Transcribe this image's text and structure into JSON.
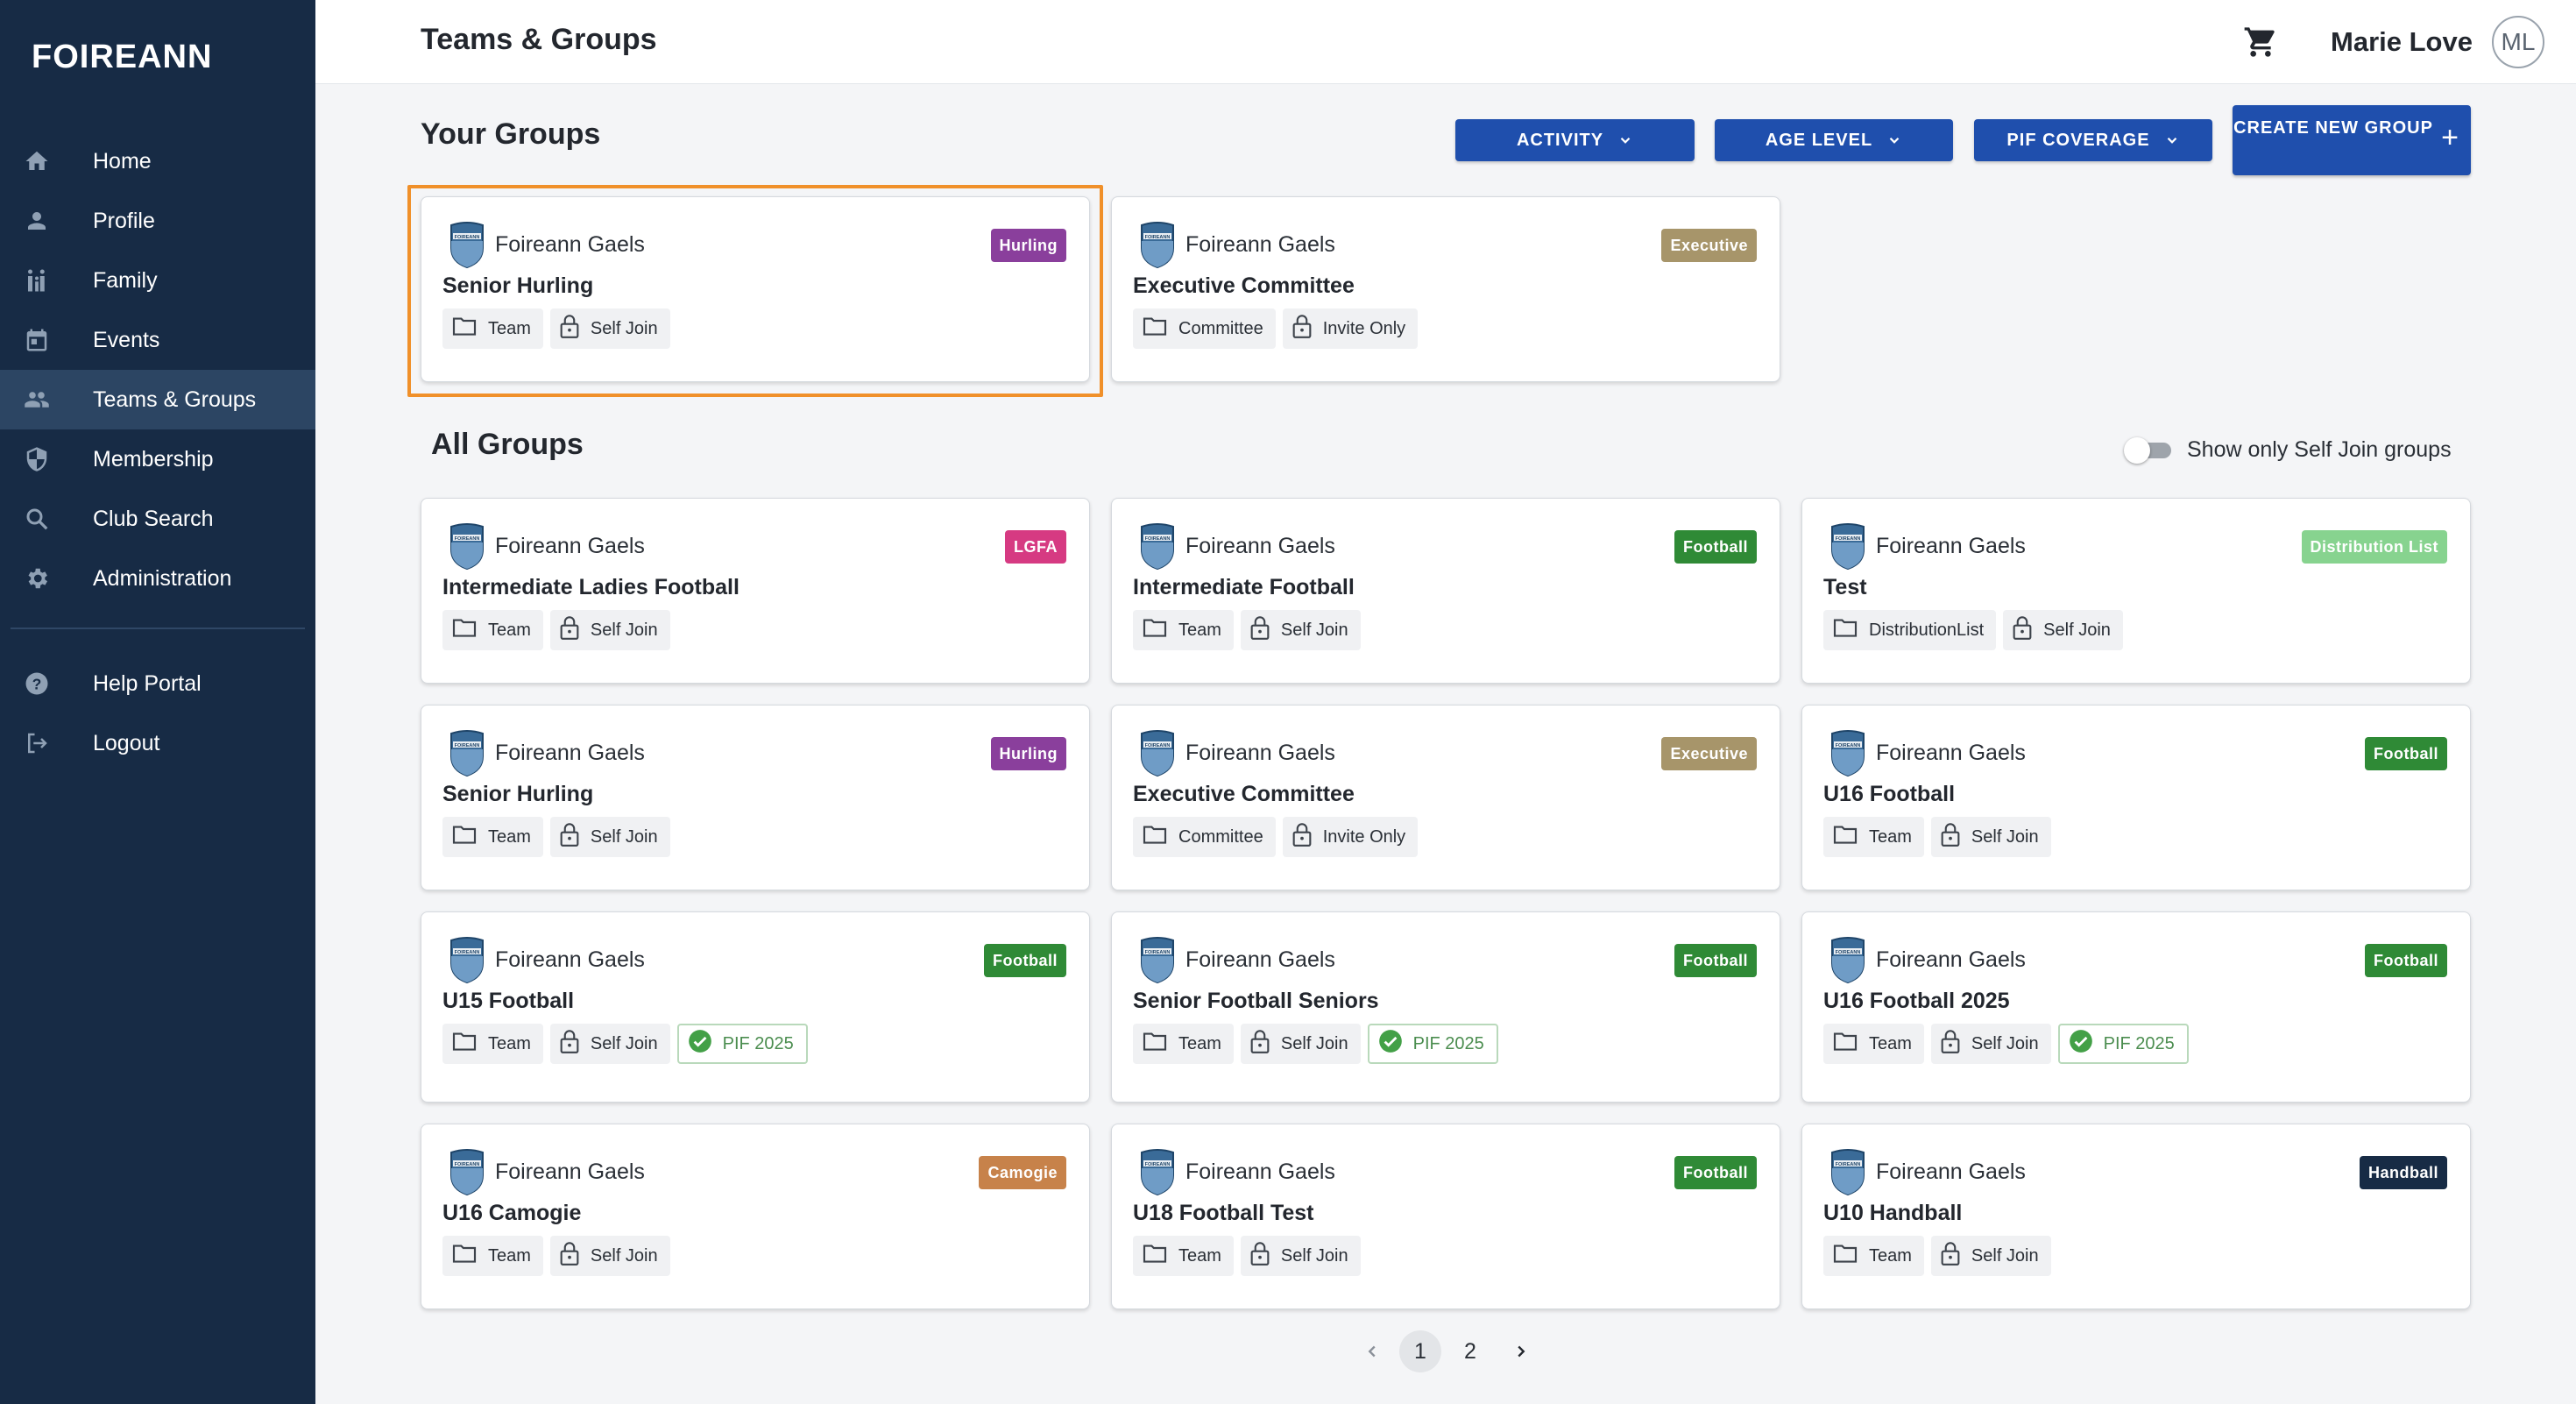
{
  "app": {
    "logo": "FOIREANN"
  },
  "sidebar": {
    "items": [
      {
        "label": "Home",
        "icon": "home-icon"
      },
      {
        "label": "Profile",
        "icon": "person-icon"
      },
      {
        "label": "Family",
        "icon": "family-icon"
      },
      {
        "label": "Events",
        "icon": "calendar-icon"
      },
      {
        "label": "Teams & Groups",
        "icon": "people-icon"
      },
      {
        "label": "Membership",
        "icon": "shield-icon"
      },
      {
        "label": "Club Search",
        "icon": "search-icon"
      },
      {
        "label": "Administration",
        "icon": "gear-icon"
      }
    ],
    "bottom_items": [
      {
        "label": "Help Portal",
        "icon": "help-icon"
      },
      {
        "label": "Logout",
        "icon": "logout-icon"
      }
    ],
    "active": "Teams & Groups"
  },
  "header": {
    "title": "Teams & Groups",
    "user_name": "Marie Love",
    "avatar_initials": "ML"
  },
  "your_groups": {
    "title": "Your Groups",
    "filters": [
      "ACTIVITY",
      "AGE LEVEL",
      "PIF COVERAGE"
    ],
    "create_label": "CREATE NEW GROUP",
    "cards": [
      {
        "club": "Foireann Gaels",
        "name": "Senior Hurling",
        "badge": "Hurling",
        "type": "Team",
        "access": "Self Join"
      },
      {
        "club": "Foireann Gaels",
        "name": "Executive Committee",
        "badge": "Executive",
        "type": "Committee",
        "access": "Invite Only"
      }
    ]
  },
  "all_groups": {
    "title": "All Groups",
    "toggle_label": "Show only Self Join groups",
    "cards": [
      {
        "club": "Foireann Gaels",
        "name": "Intermediate Ladies Football",
        "badge": "LGFA",
        "type": "Team",
        "access": "Self Join"
      },
      {
        "club": "Foireann Gaels",
        "name": "Intermediate Football",
        "badge": "Football",
        "type": "Team",
        "access": "Self Join"
      },
      {
        "club": "Foireann Gaels",
        "name": "Test",
        "badge": "Distribution List",
        "type": "DistributionList",
        "access": "Self Join"
      },
      {
        "club": "Foireann Gaels",
        "name": "Senior Hurling",
        "badge": "Hurling",
        "type": "Team",
        "access": "Self Join"
      },
      {
        "club": "Foireann Gaels",
        "name": "Executive Committee",
        "badge": "Executive",
        "type": "Committee",
        "access": "Invite Only"
      },
      {
        "club": "Foireann Gaels",
        "name": "U16 Football",
        "badge": "Football",
        "type": "Team",
        "access": "Self Join"
      },
      {
        "club": "Foireann Gaels",
        "name": "U15 Football",
        "badge": "Football",
        "type": "Team",
        "access": "Self Join",
        "pif": "PIF 2025"
      },
      {
        "club": "Foireann Gaels",
        "name": "Senior Football Seniors",
        "badge": "Football",
        "type": "Team",
        "access": "Self Join",
        "pif": "PIF 2025"
      },
      {
        "club": "Foireann Gaels",
        "name": "U16 Football 2025",
        "badge": "Football",
        "type": "Team",
        "access": "Self Join",
        "pif": "PIF 2025"
      },
      {
        "club": "Foireann Gaels",
        "name": "U16 Camogie",
        "badge": "Camogie",
        "type": "Team",
        "access": "Self Join"
      },
      {
        "club": "Foireann Gaels",
        "name": "U18 Football Test",
        "badge": "Football",
        "type": "Team",
        "access": "Self Join"
      },
      {
        "club": "Foireann Gaels",
        "name": "U10 Handball",
        "badge": "Handball",
        "type": "Team",
        "access": "Self Join"
      }
    ]
  },
  "pagination": {
    "pages": [
      "1",
      "2"
    ],
    "current": "1"
  },
  "colors": {
    "sidebar_bg": "#172b45",
    "primary": "#1f4fad",
    "highlight": "#f0902a",
    "badges": {
      "Hurling": "#8a3f9c",
      "Executive": "#a7956a",
      "LGFA": "#d63a82",
      "Football": "#2f8a36",
      "Distribution List": "#87d38f",
      "Camogie": "#c7824a",
      "Handball": "#172b45"
    }
  }
}
